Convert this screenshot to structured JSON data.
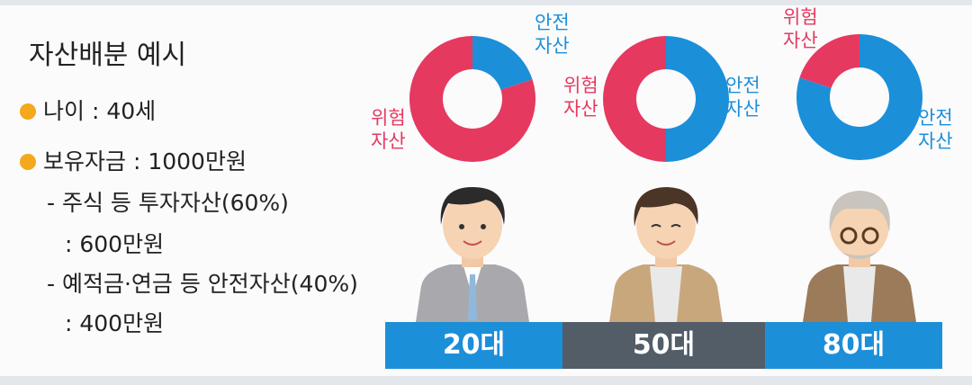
{
  "panel": {
    "title": "자산배분 예시",
    "bullets": [
      "나이 : 40세",
      "보유자금 : 1000만원"
    ],
    "lines": [
      "- 주식 등 투자자산(60%)",
      ": 600만원",
      "- 예적금·연금 등 안전자산(40%)",
      ": 400만원"
    ]
  },
  "chart_data": [
    {
      "type": "donut",
      "title": "20대",
      "categories": [
        "안전\n자산",
        "위험\n자산"
      ],
      "values": [
        20,
        80
      ],
      "colors": [
        "#1c8fd9",
        "#e6395f"
      ]
    },
    {
      "type": "donut",
      "title": "50대",
      "categories": [
        "안전\n자산",
        "위험\n자산"
      ],
      "values": [
        50,
        50
      ],
      "colors": [
        "#1c8fd9",
        "#e6395f"
      ]
    },
    {
      "type": "donut",
      "title": "80대",
      "categories": [
        "안전\n자산",
        "위험\n자산"
      ],
      "values": [
        80,
        20
      ],
      "colors": [
        "#1c8fd9",
        "#e6395f"
      ]
    }
  ]
}
